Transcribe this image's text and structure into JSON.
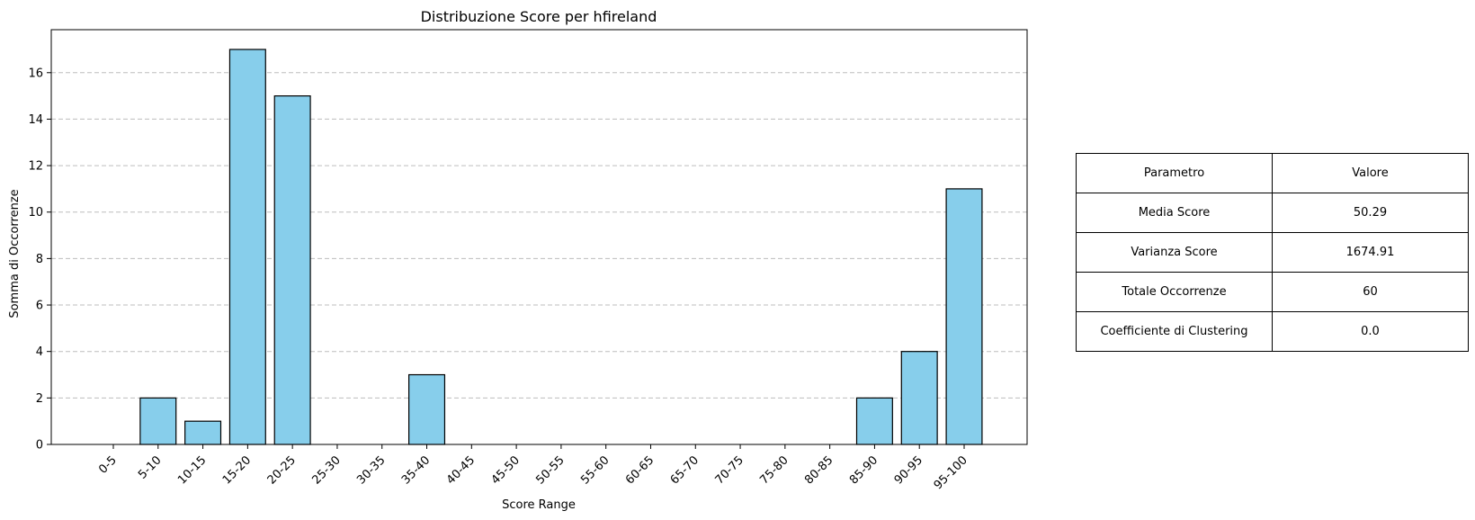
{
  "chart_data": {
    "type": "bar",
    "title": "Distribuzione Score per hfireland",
    "xlabel": "Score Range",
    "ylabel": "Somma di Occorrenze",
    "categories": [
      "0-5",
      "5-10",
      "10-15",
      "15-20",
      "20-25",
      "25-30",
      "30-35",
      "35-40",
      "40-45",
      "45-50",
      "50-55",
      "55-60",
      "60-65",
      "65-70",
      "70-75",
      "75-80",
      "80-85",
      "85-90",
      "90-95",
      "95-100"
    ],
    "values": [
      0,
      2,
      1,
      17,
      15,
      0,
      0,
      3,
      0,
      0,
      0,
      0,
      0,
      0,
      0,
      0,
      0,
      2,
      4,
      11
    ],
    "ylim": [
      0,
      17.85
    ],
    "yticks": [
      0,
      2,
      4,
      6,
      8,
      10,
      12,
      14,
      16
    ],
    "grid": "y-dashed",
    "bar_color": "#87CEEB",
    "bar_edge_color": "#000000"
  },
  "table": {
    "header": {
      "param": "Parametro",
      "value": "Valore"
    },
    "rows": [
      {
        "param": "Media Score",
        "value": "50.29"
      },
      {
        "param": "Varianza Score",
        "value": "1674.91"
      },
      {
        "param": "Totale Occorrenze",
        "value": "60"
      },
      {
        "param": "Coefficiente di Clustering",
        "value": "0.0"
      }
    ]
  }
}
